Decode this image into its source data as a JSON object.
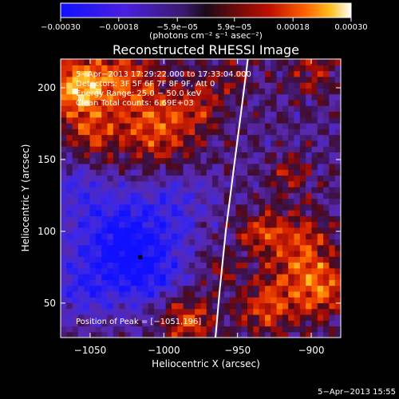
{
  "chart_data": {
    "type": "heatmap",
    "title": "Reconstructed RHESSI Image",
    "xlabel": "Heliocentric X (arcsec)",
    "ylabel": "Heliocentric Y (arcsec)",
    "xlim": [
      -1070,
      -880
    ],
    "ylim": [
      26,
      220
    ],
    "xticks": [
      -1050,
      -1000,
      -950,
      -900
    ],
    "yticks": [
      50,
      100,
      150,
      200
    ],
    "xtick_labels": [
      "−1050",
      "−1000",
      "−950",
      "−900"
    ],
    "ytick_labels": [
      "50",
      "100",
      "150",
      "200"
    ],
    "colorbar": {
      "range": [
        -0.0003,
        0.0003
      ],
      "ticks": [
        -0.0003,
        -0.00018,
        -5.9e-05,
        5.9e-05,
        0.00018,
        0.0003
      ],
      "tick_labels": [
        "−0.00030",
        "−0.00018",
        "−5.9e−05",
        "5.9e−05",
        "0.00018",
        "0.00030"
      ],
      "units": "(photons cm⁻² s⁻¹ asec⁻²)"
    },
    "annotations": [
      "5−Apr−2013 17:29:22.000 to 17:33:04.000",
      "Detectors: 3F 5F 6F 7F 8F 9F, Att 0",
      "Energy Range: 25.0 − 50.0 keV",
      "Clean    Total counts: 6.69E+03"
    ],
    "peak_label": "Position of Peak = [−1051,196]",
    "peak_position": [
      -1051,
      196
    ],
    "limb_line": [
      [
        -943,
        220
      ],
      [
        -948,
        180
      ],
      [
        -953,
        140
      ],
      [
        -958,
        100
      ],
      [
        -962,
        60
      ],
      [
        -965,
        26
      ]
    ],
    "hot_regions": [
      {
        "x": -1060,
        "y": 200,
        "r": 20,
        "v": 0.00026
      },
      {
        "x": -1030,
        "y": 208,
        "r": 25,
        "v": 0.00016
      },
      {
        "x": -1005,
        "y": 172,
        "r": 28,
        "v": 0.00018
      },
      {
        "x": -1050,
        "y": 168,
        "r": 18,
        "v": 0.00013
      },
      {
        "x": -975,
        "y": 190,
        "r": 18,
        "v": 0.0001
      },
      {
        "x": -955,
        "y": 210,
        "r": 15,
        "v": 8e-05
      },
      {
        "x": -900,
        "y": 212,
        "r": 18,
        "v": 0.0001
      },
      {
        "x": -915,
        "y": 140,
        "r": 14,
        "v": 0.00011
      },
      {
        "x": -908,
        "y": 90,
        "r": 24,
        "v": 0.00016
      },
      {
        "x": -935,
        "y": 100,
        "r": 15,
        "v": 0.00013
      },
      {
        "x": -895,
        "y": 60,
        "r": 20,
        "v": 0.0002
      },
      {
        "x": -930,
        "y": 48,
        "r": 20,
        "v": 0.00016
      },
      {
        "x": -985,
        "y": 40,
        "r": 20,
        "v": 0.00018
      },
      {
        "x": -960,
        "y": 75,
        "r": 12,
        "v": 8e-05
      }
    ],
    "cold_regions": [
      {
        "x": -1030,
        "y": 95,
        "r": 34,
        "v": -0.00022
      },
      {
        "x": -1010,
        "y": 70,
        "r": 25,
        "v": -0.00015
      },
      {
        "x": -1055,
        "y": 60,
        "r": 20,
        "v": -0.00012
      },
      {
        "x": -990,
        "y": 120,
        "r": 22,
        "v": -0.0001
      },
      {
        "x": -1060,
        "y": 130,
        "r": 18,
        "v": -8e-05
      }
    ],
    "background_level": -5e-05,
    "marker": {
      "x": -1016,
      "y": 82
    }
  },
  "timestamp": "5−Apr−2013 15:55"
}
